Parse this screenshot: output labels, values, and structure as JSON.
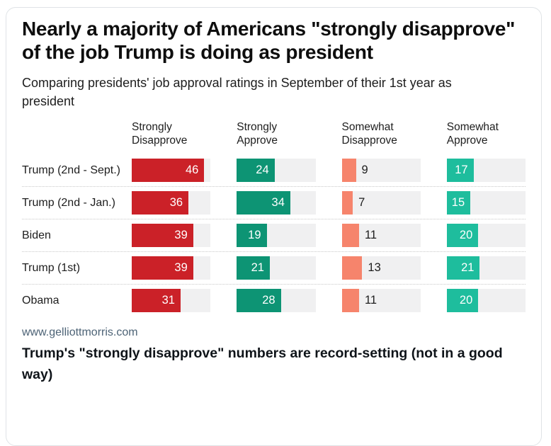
{
  "card": {
    "title": "Nearly a majority of Americans \"strongly disapprove\" of the job Trump is doing as president",
    "subtitle": "Comparing presidents' job approval ratings in September of their 1st year as president",
    "source_url": "www.gelliottmorris.com",
    "caption": "Trump's \"strongly disapprove\" numbers are record-setting (not in a good way)"
  },
  "chart_data": {
    "type": "bar",
    "orientation": "horizontal",
    "title": "Nearly a majority of Americans \"strongly disapprove\" of the job Trump is doing as president",
    "subtitle": "Comparing presidents' job approval ratings in September of their 1st year as president",
    "categories": [
      "Trump (2nd - Sept.)",
      "Trump (2nd - Jan.)",
      "Biden",
      "Trump (1st)",
      "Obama"
    ],
    "series": [
      {
        "name": "Strongly Disapprove",
        "color": "#cb2128",
        "label_position": "inside",
        "values": [
          46,
          36,
          39,
          39,
          31
        ]
      },
      {
        "name": "Strongly Approve",
        "color": "#0d9474",
        "label_position": "inside",
        "values": [
          24,
          34,
          19,
          21,
          28
        ]
      },
      {
        "name": "Somewhat Disapprove",
        "color": "#f6846c",
        "label_position": "outside",
        "values": [
          9,
          7,
          11,
          13,
          11
        ]
      },
      {
        "name": "Somewhat Approve",
        "color": "#1ebd9d",
        "label_position": "inside",
        "values": [
          17,
          15,
          20,
          21,
          20
        ]
      }
    ],
    "xlim": [
      0,
      50
    ],
    "grid": false,
    "legend_position": "column-headers",
    "track_color": "#f0f0f1",
    "unit": "percent"
  }
}
